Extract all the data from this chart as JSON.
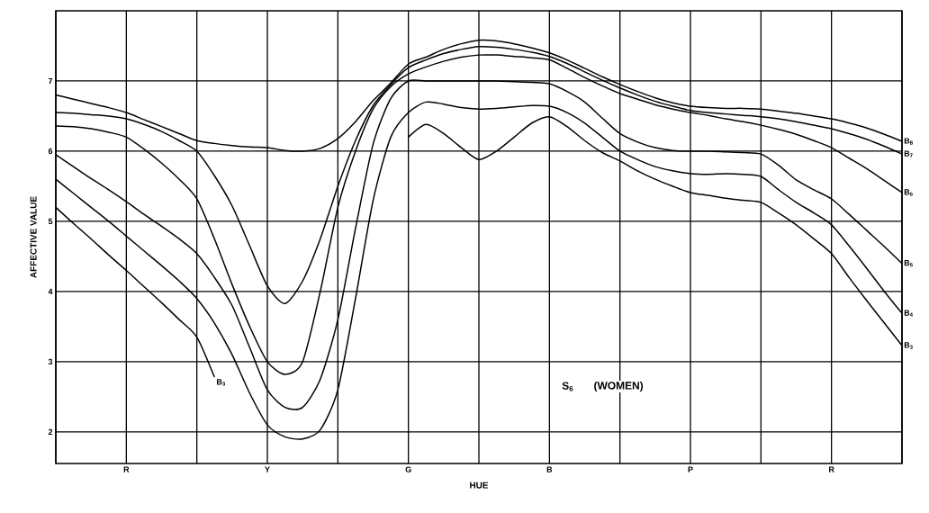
{
  "chart_data": {
    "type": "line",
    "xlabel": "HUE",
    "ylabel": "AFFECTIVE VALUE",
    "categories": [
      null,
      null,
      null,
      null,
      "R",
      null,
      null,
      null,
      null,
      null,
      null,
      null,
      "Y",
      null,
      null,
      null,
      null,
      null,
      null,
      null,
      "G",
      null,
      null,
      null,
      null,
      null,
      null,
      null,
      "B",
      null,
      null,
      null,
      null,
      null,
      null,
      null,
      "P",
      null,
      null,
      null,
      null,
      null,
      null,
      null,
      "R",
      null,
      null,
      null,
      null
    ],
    "ylim": [
      1.55,
      8
    ],
    "yticks": [
      2,
      3,
      4,
      5,
      6,
      7
    ],
    "grid": true,
    "line_style": "solid",
    "annotations": [
      "S$_{6}$",
      "(WOMEN)"
    ],
    "series": [
      {
        "name": "B$_{8}$",
        "color": "#000000",
        "values": [
          6.8,
          6.74,
          6.68,
          6.62,
          6.55,
          6.45,
          6.35,
          6.25,
          6.15,
          6.11,
          6.08,
          6.06,
          6.05,
          6.01,
          6.0,
          6.04,
          6.18,
          6.42,
          6.72,
          6.97,
          7.24,
          7.34,
          7.45,
          7.53,
          7.58,
          7.57,
          7.53,
          7.47,
          7.4,
          7.3,
          7.18,
          7.06,
          6.95,
          6.85,
          6.76,
          6.69,
          6.64,
          6.62,
          6.61,
          6.61,
          6.6,
          6.57,
          6.54,
          6.5,
          6.46,
          6.4,
          6.33,
          6.24,
          6.14
        ]
      },
      {
        "name": "B$_{7}$",
        "color": "#000000",
        "values": [
          6.55,
          6.54,
          6.52,
          6.5,
          6.46,
          6.38,
          6.28,
          6.15,
          6.0,
          5.65,
          5.22,
          4.65,
          4.08,
          3.83,
          4.15,
          4.75,
          5.5,
          6.15,
          6.65,
          6.95,
          7.19,
          7.3,
          7.39,
          7.45,
          7.49,
          7.48,
          7.45,
          7.41,
          7.35,
          7.25,
          7.13,
          7.01,
          6.9,
          6.8,
          6.71,
          6.64,
          6.58,
          6.55,
          6.53,
          6.51,
          6.49,
          6.46,
          6.42,
          6.37,
          6.32,
          6.25,
          6.17,
          6.07,
          5.96
        ]
      },
      {
        "name": "B$_{6}$",
        "color": "#000000",
        "values": [
          6.36,
          6.35,
          6.32,
          6.27,
          6.2,
          6.03,
          5.83,
          5.6,
          5.32,
          4.75,
          4.1,
          3.5,
          3.0,
          2.82,
          3.0,
          4.0,
          5.2,
          6.0,
          6.6,
          6.92,
          7.1,
          7.2,
          7.28,
          7.34,
          7.37,
          7.37,
          7.35,
          7.33,
          7.3,
          7.18,
          7.05,
          6.93,
          6.82,
          6.74,
          6.66,
          6.6,
          6.55,
          6.51,
          6.46,
          6.42,
          6.37,
          6.31,
          6.24,
          6.15,
          6.05,
          5.9,
          5.75,
          5.58,
          5.41
        ]
      },
      {
        "name": "B$_{5}$",
        "color": "#000000",
        "values": [
          5.95,
          5.78,
          5.61,
          5.45,
          5.28,
          5.1,
          4.93,
          4.75,
          4.54,
          4.2,
          3.8,
          3.2,
          2.6,
          2.35,
          2.35,
          2.75,
          3.6,
          4.9,
          6.1,
          6.75,
          7.0,
          7.0,
          7.0,
          7.0,
          7.0,
          7.0,
          6.99,
          6.98,
          6.96,
          6.85,
          6.7,
          6.47,
          6.25,
          6.13,
          6.05,
          6.01,
          6.0,
          6.0,
          5.99,
          5.98,
          5.96,
          5.8,
          5.59,
          5.45,
          5.32,
          5.1,
          4.87,
          4.64,
          4.4
        ]
      },
      {
        "name": "B$_{4}$",
        "color": "#000000",
        "values": [
          5.6,
          5.4,
          5.2,
          5.0,
          4.79,
          4.58,
          4.37,
          4.15,
          3.9,
          3.55,
          3.1,
          2.55,
          2.1,
          1.93,
          1.9,
          2.03,
          2.6,
          3.9,
          5.3,
          6.2,
          6.55,
          6.7,
          6.67,
          6.62,
          6.6,
          6.61,
          6.63,
          6.65,
          6.64,
          6.55,
          6.4,
          6.2,
          6.0,
          5.88,
          5.78,
          5.72,
          5.68,
          5.67,
          5.68,
          5.67,
          5.64,
          5.45,
          5.27,
          5.12,
          4.95,
          4.65,
          4.33,
          4.0,
          3.69
        ]
      },
      {
        "name": "B$_{3}$",
        "color": "#000000",
        "values": [
          5.2,
          4.97,
          4.75,
          4.52,
          4.3,
          4.07,
          3.84,
          3.6,
          3.35,
          2.78,
          null,
          null,
          null,
          null,
          null,
          null,
          null,
          null,
          null,
          null,
          6.2,
          6.38,
          6.25,
          6.05,
          5.88,
          6.0,
          6.2,
          6.4,
          6.49,
          6.35,
          6.15,
          5.98,
          5.86,
          5.72,
          5.6,
          5.5,
          5.41,
          5.37,
          5.33,
          5.3,
          5.27,
          5.12,
          4.95,
          4.75,
          4.54,
          4.2,
          3.87,
          3.55,
          3.23
        ]
      }
    ]
  }
}
